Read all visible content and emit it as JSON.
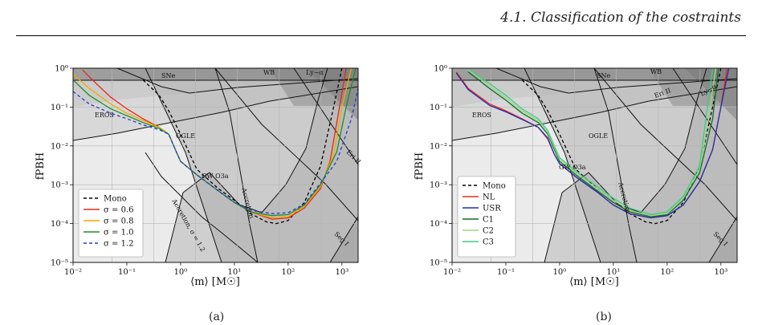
{
  "page_header": "4.1. Classification of the costraints",
  "captions": [
    "(a)",
    "(b)"
  ],
  "chart_data": [
    {
      "type": "line",
      "xlabel": "⟨m⟩ [M☉]",
      "ylabel": "fPBH",
      "xscale": "log",
      "yscale": "log",
      "xlim": [
        0.01,
        2000
      ],
      "ylim": [
        1e-05,
        1
      ],
      "x_ticks": [
        "10⁻²",
        "10⁻¹",
        "10⁰",
        "10¹",
        "10²",
        "10³"
      ],
      "y_ticks": [
        "10⁻⁵",
        "10⁻⁴",
        "10⁻³",
        "10⁻²",
        "10⁻¹",
        "10⁰"
      ],
      "grid": true,
      "legend_position": "lower-left",
      "constraint_labels": [
        "SNe",
        "WB",
        "Ly−α",
        "EROS",
        "OGLE",
        "Eri II",
        "GW O3a",
        "Accretion",
        "Seg I",
        "Accretion, σ = 1.2"
      ],
      "series": [
        {
          "name": "Mono",
          "color": "#000000",
          "dash": "4,3",
          "x": [
            0.2,
            0.4,
            0.6,
            1.0,
            2.0,
            5,
            10,
            20,
            40,
            60,
            100,
            200,
            400,
            700,
            1000
          ],
          "y": [
            0.5,
            0.2,
            0.08,
            0.02,
            0.0025,
            0.0008,
            0.0004,
            0.00018,
            0.00011,
            0.0001,
            0.00012,
            0.00035,
            0.003,
            0.1,
            1.0
          ]
        },
        {
          "name": "σ = 0.6",
          "color": "#e8281c",
          "dash": "",
          "x": [
            0.015,
            0.02,
            0.03,
            0.05,
            0.1,
            0.2,
            0.4,
            0.6,
            0.8,
            1.0,
            2,
            5,
            10,
            20,
            50,
            100,
            200,
            400,
            600,
            900,
            1200
          ],
          "y": [
            0.9,
            0.6,
            0.35,
            0.18,
            0.09,
            0.05,
            0.03,
            0.02,
            0.008,
            0.004,
            0.0018,
            0.0007,
            0.00035,
            0.0002,
            0.00013,
            0.00014,
            0.00025,
            0.0008,
            0.004,
            0.1,
            1.0
          ]
        },
        {
          "name": "σ = 0.8",
          "color": "#f2a900",
          "dash": "",
          "x": [
            0.01,
            0.02,
            0.05,
            0.1,
            0.2,
            0.4,
            0.6,
            0.8,
            1.0,
            2,
            5,
            10,
            20,
            50,
            100,
            200,
            400,
            700,
            1000,
            1500
          ],
          "y": [
            0.7,
            0.3,
            0.12,
            0.07,
            0.045,
            0.03,
            0.02,
            0.008,
            0.004,
            0.0018,
            0.0007,
            0.00035,
            0.0002,
            0.00014,
            0.00015,
            0.00028,
            0.0009,
            0.006,
            0.1,
            1.0
          ]
        },
        {
          "name": "σ = 1.0",
          "color": "#1f8f2a",
          "dash": "",
          "x": [
            0.01,
            0.02,
            0.05,
            0.1,
            0.2,
            0.4,
            0.6,
            0.8,
            1.0,
            2,
            5,
            10,
            20,
            50,
            100,
            200,
            400,
            800,
            1200,
            1800
          ],
          "y": [
            0.5,
            0.2,
            0.09,
            0.06,
            0.04,
            0.028,
            0.02,
            0.008,
            0.004,
            0.0018,
            0.0007,
            0.00035,
            0.0002,
            0.00016,
            0.00017,
            0.0003,
            0.001,
            0.007,
            0.1,
            1.0
          ]
        },
        {
          "name": "σ = 1.2",
          "color": "#1f3fd6",
          "dash": "4,3",
          "x": [
            0.01,
            0.02,
            0.05,
            0.1,
            0.2,
            0.4,
            0.6,
            0.8,
            1.0,
            2,
            5,
            10,
            20,
            50,
            100,
            200,
            400,
            800,
            1500,
            2000
          ],
          "y": [
            0.25,
            0.12,
            0.07,
            0.05,
            0.035,
            0.026,
            0.02,
            0.008,
            0.004,
            0.0018,
            0.0007,
            0.00035,
            0.00022,
            0.00018,
            0.00019,
            0.00032,
            0.0011,
            0.004,
            0.05,
            0.3
          ]
        }
      ]
    },
    {
      "type": "line",
      "xlabel": "⟨m⟩ [M☉]",
      "ylabel": "fPBH",
      "xscale": "log",
      "yscale": "log",
      "xlim": [
        0.01,
        2000
      ],
      "ylim": [
        1e-05,
        1
      ],
      "x_ticks": [
        "10⁻²",
        "10⁻¹",
        "10⁰",
        "10¹",
        "10²",
        "10³"
      ],
      "y_ticks": [
        "10⁻⁵",
        "10⁻⁴",
        "10⁻³",
        "10⁻²",
        "10⁻¹",
        "10⁰"
      ],
      "grid": true,
      "legend_position": "lower-left",
      "constraint_labels": [
        "SNe",
        "WB",
        "Eri II",
        "Ly−α",
        "EROS",
        "OGLE",
        "GW O3a",
        "Accretion",
        "Seg I"
      ],
      "series": [
        {
          "name": "Mono",
          "color": "#000000",
          "dash": "4,3",
          "x": [
            0.2,
            0.4,
            0.6,
            1.0,
            2.0,
            5,
            10,
            20,
            40,
            60,
            100,
            200,
            400,
            700,
            1000
          ],
          "y": [
            0.5,
            0.2,
            0.08,
            0.02,
            0.0025,
            0.0008,
            0.0004,
            0.00018,
            0.00011,
            0.0001,
            0.00012,
            0.00035,
            0.003,
            0.1,
            1.0
          ]
        },
        {
          "name": "NL",
          "color": "#e8281c",
          "dash": "",
          "x": [
            0.012,
            0.02,
            0.05,
            0.1,
            0.2,
            0.4,
            0.6,
            0.8,
            1.0,
            2,
            5,
            10,
            20,
            50,
            100,
            200,
            400,
            700,
            1000,
            1300
          ],
          "y": [
            0.8,
            0.3,
            0.12,
            0.08,
            0.05,
            0.03,
            0.015,
            0.006,
            0.0035,
            0.0016,
            0.00065,
            0.0003,
            0.00018,
            0.00014,
            0.00016,
            0.0003,
            0.0012,
            0.008,
            0.1,
            1.0
          ]
        },
        {
          "name": "USR",
          "color": "#1f2fb0",
          "dash": "",
          "x": [
            0.012,
            0.02,
            0.05,
            0.1,
            0.2,
            0.4,
            0.6,
            0.8,
            1.0,
            2,
            5,
            10,
            20,
            50,
            100,
            200,
            400,
            700,
            1000,
            1400
          ],
          "y": [
            0.75,
            0.28,
            0.11,
            0.075,
            0.048,
            0.03,
            0.016,
            0.006,
            0.0035,
            0.0016,
            0.00065,
            0.0003,
            0.00018,
            0.00014,
            0.00016,
            0.0003,
            0.0012,
            0.008,
            0.1,
            1.0
          ]
        },
        {
          "name": "C1",
          "color": "#136b2f",
          "dash": "",
          "x": [
            0.02,
            0.05,
            0.1,
            0.2,
            0.4,
            0.6,
            0.8,
            1.0,
            2,
            5,
            10,
            20,
            50,
            100,
            200,
            400,
            700,
            900
          ],
          "y": [
            0.8,
            0.3,
            0.15,
            0.07,
            0.04,
            0.02,
            0.008,
            0.004,
            0.0018,
            0.0007,
            0.00035,
            0.0002,
            0.00015,
            0.00017,
            0.0004,
            0.002,
            0.05,
            1.0
          ]
        },
        {
          "name": "C2",
          "color": "#9fd77a",
          "dash": "",
          "x": [
            0.02,
            0.05,
            0.1,
            0.2,
            0.4,
            0.6,
            0.8,
            1.0,
            2,
            5,
            10,
            20,
            50,
            100,
            200,
            400,
            600,
            800
          ],
          "y": [
            0.9,
            0.35,
            0.17,
            0.08,
            0.045,
            0.022,
            0.009,
            0.0045,
            0.002,
            0.0008,
            0.0004,
            0.00022,
            0.00016,
            0.00018,
            0.00045,
            0.0025,
            0.06,
            1.0
          ]
        },
        {
          "name": "C3",
          "color": "#3ccb8a",
          "dash": "",
          "x": [
            0.02,
            0.05,
            0.1,
            0.2,
            0.4,
            0.6,
            0.8,
            1.0,
            2,
            5,
            10,
            20,
            50,
            100,
            200,
            400,
            550,
            700
          ],
          "y": [
            0.95,
            0.4,
            0.2,
            0.09,
            0.05,
            0.025,
            0.01,
            0.005,
            0.0022,
            0.0009,
            0.00045,
            0.00025,
            0.00017,
            0.0002,
            0.0005,
            0.003,
            0.08,
            1.0
          ]
        }
      ]
    }
  ]
}
